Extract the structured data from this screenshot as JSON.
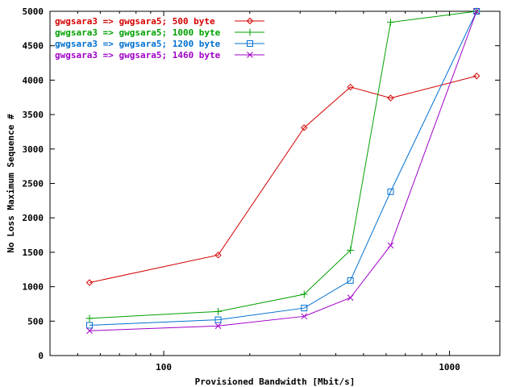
{
  "chart_data": {
    "type": "line",
    "title": "",
    "xlabel": "Provisioned Bandwidth [Mbit/s]",
    "ylabel": "No Loss Maximum Sequence #",
    "xscale": "log",
    "xlim": [
      40,
      1500
    ],
    "ylim": [
      0,
      5000
    ],
    "grid": false,
    "legend_position": "top-left",
    "x": [
      55,
      155,
      310,
      450,
      622,
      1244
    ],
    "xticks": [
      100,
      1000
    ],
    "xtick_labels": [
      "100",
      "1000"
    ],
    "yticks": [
      0,
      500,
      1000,
      1500,
      2000,
      2500,
      3000,
      3500,
      4000,
      4500,
      5000
    ],
    "ytick_labels": [
      "0",
      "500",
      "1000",
      "1500",
      "2000",
      "2500",
      "3000",
      "3500",
      "4000",
      "4500",
      "5000"
    ],
    "series": [
      {
        "name": "gwgsara3 => gwgsara5;  500 byte",
        "color": "#d40000",
        "marker": "diamond",
        "values": [
          1060,
          1460,
          3310,
          3900,
          3740,
          4060
        ]
      },
      {
        "name": "gwgsara3 => gwgsara5; 1000 byte",
        "color": "#00a000",
        "marker": "plus",
        "values": [
          540,
          640,
          890,
          1530,
          4840,
          5000
        ]
      },
      {
        "name": "gwgsara3 => gwgsara5; 1200 byte",
        "color": "#0070d0",
        "marker": "square",
        "values": [
          440,
          520,
          690,
          1090,
          2380,
          5000
        ]
      },
      {
        "name": "gwgsara3 => gwgsara5; 1460 byte",
        "color": "#a000c8",
        "marker": "cross",
        "values": [
          360,
          430,
          570,
          840,
          1600,
          5000
        ]
      }
    ]
  }
}
